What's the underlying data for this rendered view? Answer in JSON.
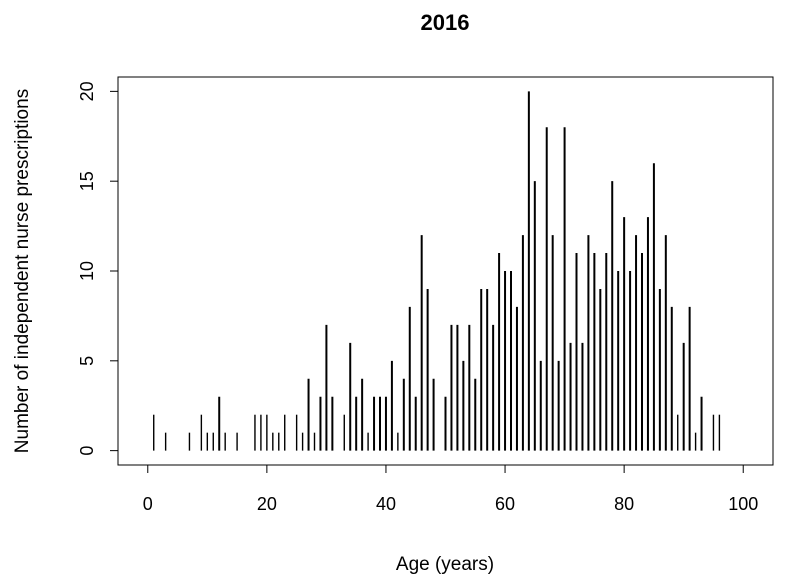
{
  "chart_data": {
    "type": "bar",
    "title": "2016",
    "xlabel": "Age (years)",
    "ylabel": "Number of independent nurse prescriptions",
    "xlim": [
      -5,
      105
    ],
    "ylim": [
      -0.8,
      20.8
    ],
    "xticks": [
      0,
      20,
      40,
      60,
      80,
      100
    ],
    "yticks": [
      0,
      5,
      10,
      15,
      20
    ],
    "grid": false,
    "series": [
      {
        "x": [
          1,
          3,
          7,
          9,
          10,
          11,
          12,
          13,
          15,
          18,
          19,
          20,
          21,
          22,
          23,
          25,
          26,
          27,
          28,
          29,
          30,
          31,
          33,
          34,
          35,
          36,
          37,
          38,
          39,
          40,
          41,
          42,
          43,
          44,
          45,
          46,
          47,
          48,
          50,
          51,
          52,
          53,
          54,
          55,
          56,
          57,
          58,
          59,
          60,
          61,
          62,
          63,
          64,
          65,
          66,
          67,
          68,
          69,
          70,
          71,
          72,
          73,
          74,
          75,
          76,
          77,
          78,
          79,
          80,
          81,
          82,
          83,
          84,
          85,
          86,
          87,
          88,
          89,
          90,
          91,
          92,
          93,
          95,
          96
        ],
        "values": [
          2,
          1,
          1,
          2,
          1,
          1,
          3,
          1,
          1,
          2,
          2,
          2,
          1,
          1,
          2,
          2,
          1,
          4,
          1,
          3,
          7,
          3,
          2,
          6,
          3,
          4,
          1,
          3,
          3,
          3,
          5,
          1,
          4,
          8,
          3,
          12,
          9,
          4,
          3,
          7,
          7,
          5,
          7,
          4,
          9,
          9,
          7,
          11,
          10,
          10,
          8,
          12,
          20,
          15,
          5,
          18,
          12,
          5,
          18,
          6,
          11,
          6,
          12,
          11,
          9,
          11,
          15,
          10,
          13,
          10,
          12,
          11,
          13,
          16,
          9,
          12,
          8,
          2,
          6,
          8,
          1,
          3,
          2,
          2
        ]
      }
    ]
  }
}
